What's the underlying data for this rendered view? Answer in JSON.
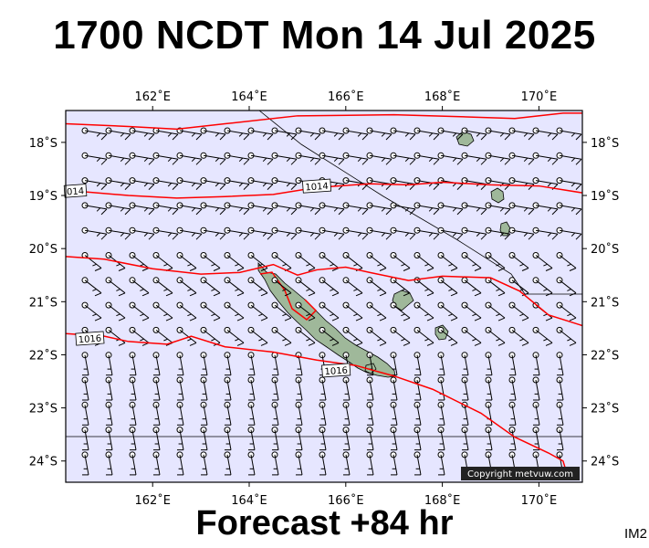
{
  "title": "1700 NCDT Mon 14 Jul 2025",
  "footer": "Forecast +84 hr",
  "corner_label": "IM2",
  "copyright": "Copyright metvuw.com",
  "colors": {
    "map_background": "#e6e6ff",
    "isobar": "#ff0000",
    "land": "#9fb89a",
    "text": "#000000"
  },
  "map": {
    "lon_range": [
      160.2,
      170.9
    ],
    "lat_range": [
      -24.4,
      -17.4
    ],
    "lon_ticks": [
      "162˚E",
      "164˚E",
      "166˚E",
      "168˚E",
      "170˚E"
    ],
    "lon_tick_values": [
      162,
      164,
      166,
      168,
      170
    ],
    "lat_ticks": [
      "18˚S",
      "19˚S",
      "20˚S",
      "21˚S",
      "22˚S",
      "23˚S",
      "24˚S"
    ],
    "lat_tick_values": [
      -18,
      -19,
      -20,
      -21,
      -22,
      -23,
      -24
    ],
    "isobar_labels": [
      {
        "text": "014",
        "lon": 160.4,
        "lat": -18.92
      },
      {
        "text": "1014",
        "lon": 165.4,
        "lat": -18.83
      },
      {
        "text": "1016",
        "lon": 160.7,
        "lat": -21.7
      },
      {
        "text": "1016",
        "lon": 165.8,
        "lat": -22.3
      }
    ],
    "isobars": [
      {
        "name": "north",
        "points": [
          [
            160.2,
            -17.65
          ],
          [
            161.5,
            -17.7
          ],
          [
            162.5,
            -17.75
          ],
          [
            163.5,
            -17.65
          ],
          [
            165,
            -17.5
          ],
          [
            167,
            -17.48
          ],
          [
            168.5,
            -17.52
          ],
          [
            169.5,
            -17.55
          ],
          [
            170.5,
            -17.45
          ],
          [
            170.9,
            -17.45
          ]
        ]
      },
      {
        "name": "1014",
        "points": [
          [
            160.2,
            -18.9
          ],
          [
            161.5,
            -19.0
          ],
          [
            162.5,
            -19.05
          ],
          [
            163.5,
            -19.02
          ],
          [
            164.5,
            -18.98
          ],
          [
            165.4,
            -18.85
          ],
          [
            166.5,
            -18.78
          ],
          [
            167.3,
            -18.8
          ],
          [
            168,
            -18.75
          ],
          [
            169,
            -18.8
          ],
          [
            170,
            -18.82
          ],
          [
            170.9,
            -18.95
          ]
        ]
      },
      {
        "name": "middle",
        "points": [
          [
            160.2,
            -20.15
          ],
          [
            161,
            -20.2
          ],
          [
            162,
            -20.38
          ],
          [
            163,
            -20.48
          ],
          [
            163.8,
            -20.45
          ],
          [
            164.5,
            -20.3
          ],
          [
            165,
            -20.5
          ],
          [
            165.4,
            -20.4
          ],
          [
            166,
            -20.35
          ],
          [
            166.5,
            -20.45
          ],
          [
            167.3,
            -20.6
          ],
          [
            168,
            -20.52
          ],
          [
            169,
            -20.55
          ],
          [
            169.6,
            -20.8
          ],
          [
            170.2,
            -21.25
          ],
          [
            170.9,
            -21.45
          ]
        ]
      },
      {
        "name": "1016",
        "points": [
          [
            160.2,
            -21.6
          ],
          [
            161,
            -21.65
          ],
          [
            161.5,
            -21.75
          ],
          [
            162.3,
            -21.8
          ],
          [
            162.8,
            -21.65
          ],
          [
            163.5,
            -21.85
          ],
          [
            164.5,
            -21.95
          ],
          [
            165.4,
            -22.1
          ],
          [
            166.2,
            -22.2
          ],
          [
            167,
            -22.4
          ],
          [
            167.8,
            -22.65
          ],
          [
            168.8,
            -23.1
          ],
          [
            169.5,
            -23.55
          ],
          [
            170.2,
            -23.85
          ],
          [
            170.5,
            -24.0
          ],
          [
            170.6,
            -24.3
          ]
        ]
      }
    ]
  }
}
